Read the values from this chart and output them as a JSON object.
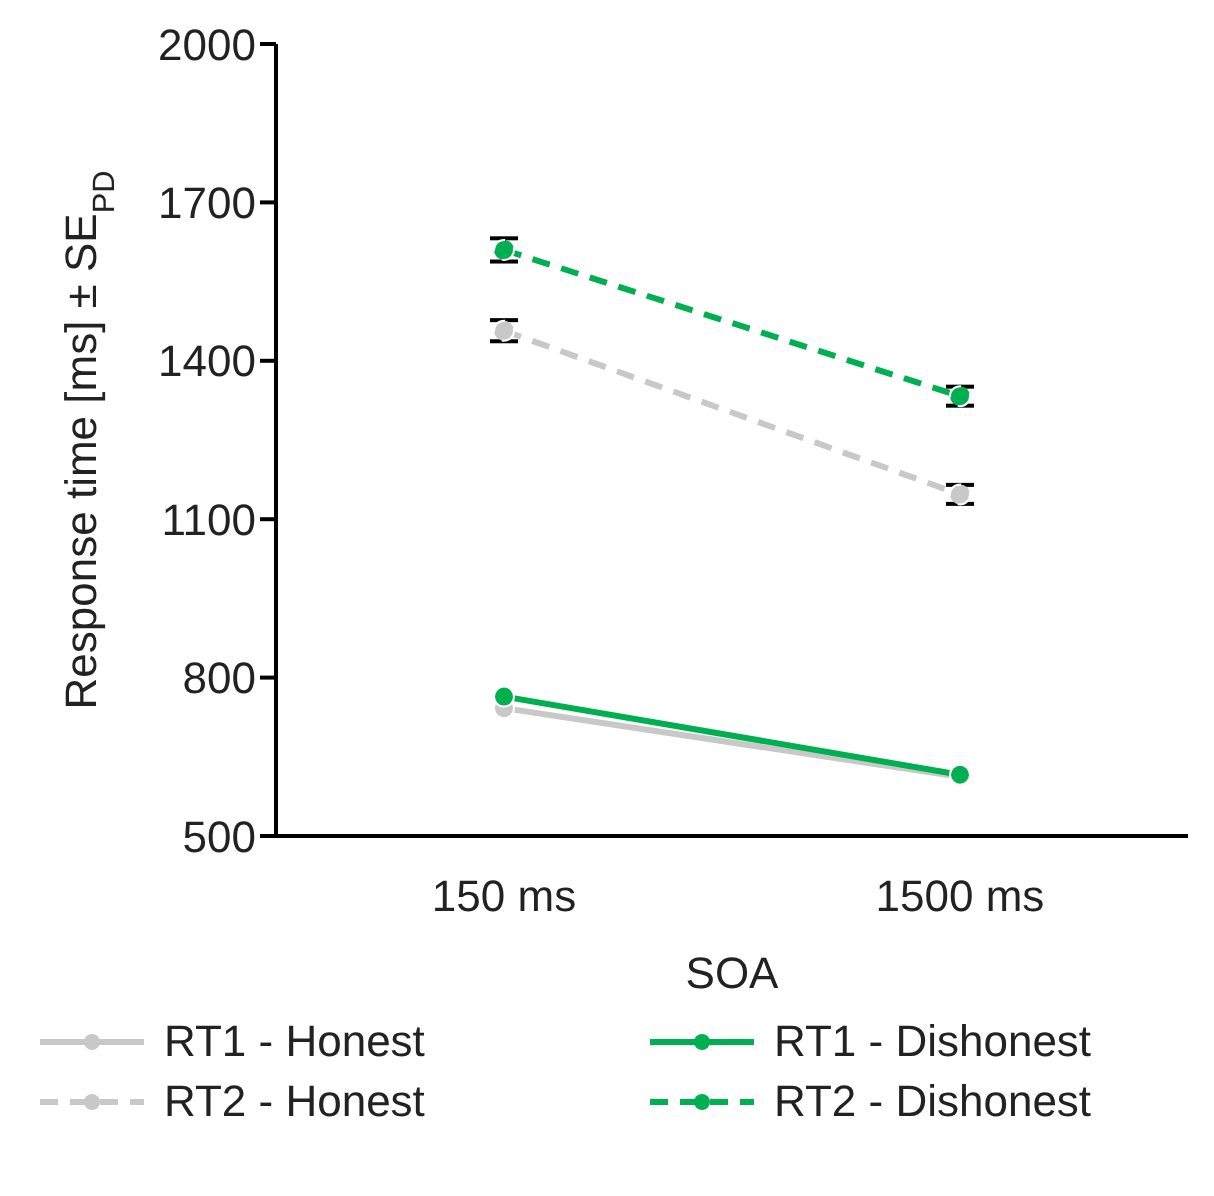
{
  "chart_data": {
    "type": "line",
    "xlabel": "SOA",
    "ylabel": "Response time [ms] ± SE$_{PD}$",
    "categories": [
      "150 ms",
      "1500 ms"
    ],
    "series": [
      {
        "name": "RT1 - Honest",
        "color": "#c8c8c8",
        "values": [
          742,
          612
        ],
        "line_style": "solid"
      },
      {
        "name": "RT1 - Dishonest",
        "color": "#00b050",
        "values": [
          764,
          616
        ],
        "line_style": "solid"
      },
      {
        "name": "RT2 - Honest",
        "color": "#c8c8c8",
        "values": [
          1457,
          1147
        ],
        "errors": [
          20,
          18
        ],
        "line_style": "dashed"
      },
      {
        "name": "RT2 - Dishonest",
        "color": "#00b050",
        "values": [
          1610,
          1333
        ],
        "errors": [
          22,
          18
        ],
        "line_style": "dashed"
      }
    ],
    "ylim": [
      500,
      2000
    ],
    "yticks": [
      500,
      800,
      1100,
      1400,
      1700,
      2000
    ],
    "legend": "bottom",
    "marker": "circle"
  }
}
